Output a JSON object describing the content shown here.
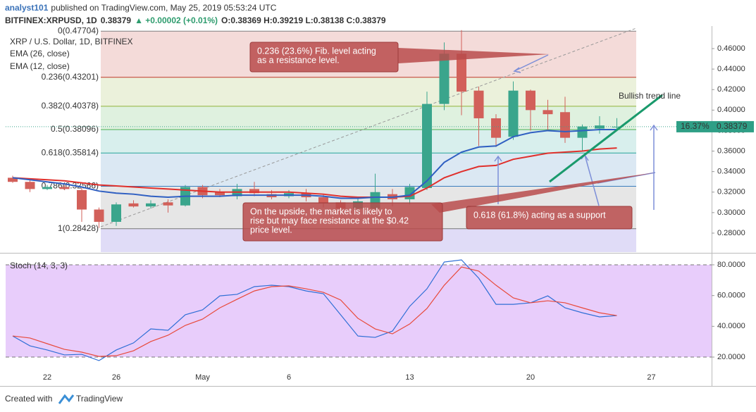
{
  "header": {
    "author": "analyst101",
    "published": "published on TradingView.com, May 25, 2019 05:53:24 UTC",
    "symbol": "BITFINEX:XRPUSD, 1D",
    "price": "0.38379",
    "change": "▲ +0.00002 (+0.01%)",
    "ohlc": "O:0.38369 H:0.39219 L:0.38138 C:0.38379"
  },
  "footer": {
    "created": "Created with",
    "brand": "TradingView"
  },
  "chart_data": [
    {
      "type": "candlestick",
      "title": "XRP / U.S. Dollar, 1D, BITFINEX",
      "categories": [
        null,
        null,
        "22",
        null,
        null,
        null,
        "26",
        null,
        null,
        null,
        null,
        "May",
        null,
        null,
        null,
        null,
        "6",
        null,
        null,
        null,
        null,
        null,
        null,
        "13",
        null,
        null,
        null,
        null,
        null,
        null,
        "20",
        null,
        null,
        null,
        null,
        null,
        null,
        "27"
      ],
      "open": [
        0.334,
        0.33,
        0.323,
        0.325,
        0.322,
        0.303,
        0.291,
        0.309,
        0.306,
        0.31,
        0.307,
        0.325,
        0.32,
        0.316,
        0.323,
        0.318,
        0.316,
        0.319,
        0.315,
        0.31,
        0.304,
        0.304,
        0.318,
        0.313,
        0.324,
        0.406,
        0.455,
        0.419,
        0.392,
        0.374,
        0.419,
        0.4,
        0.398,
        0.373,
        0.382,
        0.38369,
        null,
        null
      ],
      "high": [
        0.336,
        0.332,
        0.327,
        0.327,
        0.324,
        0.305,
        0.31,
        0.312,
        0.312,
        0.313,
        0.327,
        0.327,
        0.323,
        0.328,
        0.33,
        0.322,
        0.322,
        0.323,
        0.318,
        0.312,
        0.314,
        0.338,
        0.323,
        0.328,
        0.418,
        0.466,
        0.478,
        0.423,
        0.396,
        0.428,
        0.42,
        0.41,
        0.413,
        0.386,
        0.394,
        0.39219,
        null,
        null
      ],
      "low": [
        0.329,
        0.32,
        0.322,
        0.322,
        0.291,
        0.285,
        0.287,
        0.305,
        0.304,
        0.3,
        0.306,
        0.314,
        0.315,
        0.313,
        0.316,
        0.313,
        0.314,
        0.311,
        0.305,
        0.301,
        0.3,
        0.302,
        0.306,
        0.308,
        0.322,
        0.4,
        0.395,
        0.365,
        0.364,
        0.371,
        0.38,
        0.38,
        0.368,
        0.36,
        0.377,
        0.38138,
        null,
        null
      ],
      "close": [
        0.33,
        0.323,
        0.325,
        0.323,
        0.303,
        0.291,
        0.308,
        0.306,
        0.309,
        0.307,
        0.325,
        0.317,
        0.317,
        0.323,
        0.319,
        0.315,
        0.319,
        0.315,
        0.309,
        0.304,
        0.311,
        0.32,
        0.313,
        0.325,
        0.406,
        0.455,
        0.418,
        0.392,
        0.373,
        0.419,
        0.4,
        0.396,
        0.373,
        0.384,
        0.385,
        0.38379,
        null,
        null
      ],
      "up_color": "#3aa58c",
      "down_color": "#d2605a",
      "series": [
        {
          "name": "EMA (26, close)",
          "color": "#e0302c",
          "values": [
            0.334,
            0.333,
            0.332,
            0.331,
            0.329,
            0.327,
            0.326,
            0.325,
            0.324,
            0.323,
            0.322,
            0.321,
            0.32,
            0.32,
            0.32,
            0.32,
            0.32,
            0.319,
            0.318,
            0.316,
            0.315,
            0.315,
            0.315,
            0.316,
            0.324,
            0.334,
            0.34,
            0.345,
            0.346,
            0.352,
            0.355,
            0.358,
            0.359,
            0.36,
            0.362,
            0.363,
            null,
            null
          ]
        },
        {
          "name": "EMA (12, close)",
          "color": "#2f5fc2",
          "values": [
            0.334,
            0.332,
            0.33,
            0.328,
            0.325,
            0.321,
            0.319,
            0.318,
            0.316,
            0.315,
            0.316,
            0.316,
            0.316,
            0.317,
            0.317,
            0.317,
            0.317,
            0.317,
            0.316,
            0.314,
            0.314,
            0.315,
            0.315,
            0.317,
            0.331,
            0.349,
            0.359,
            0.364,
            0.365,
            0.374,
            0.378,
            0.38,
            0.379,
            0.38,
            0.381,
            0.381,
            null,
            null
          ]
        }
      ],
      "ylim": [
        0.26145,
        0.48198
      ],
      "yticks": [
        {
          "value": 0.28,
          "label": "0.28000"
        },
        {
          "value": 0.3,
          "label": "0.30000"
        },
        {
          "value": 0.32,
          "label": "0.32000"
        },
        {
          "value": 0.34,
          "label": "0.34000"
        },
        {
          "value": 0.36,
          "label": "0.36000"
        },
        {
          "value": 0.38,
          "label": "0.38000"
        },
        {
          "value": 0.4,
          "label": "0.40000"
        },
        {
          "value": 0.42,
          "label": "0.42000"
        },
        {
          "value": 0.44,
          "label": "0.44000"
        },
        {
          "value": 0.46,
          "label": "0.46000"
        }
      ],
      "fib_levels": [
        {
          "value": 0.47704,
          "label": "0(0.47704)",
          "color": "#808080"
        },
        {
          "value": 0.43201,
          "label": "0.236(0.43201)",
          "color": "#c0392b"
        },
        {
          "value": 0.40378,
          "label": "0.382(0.40378)",
          "color": "#8fb33a"
        },
        {
          "value": 0.38096,
          "label": "0.5(0.38096)",
          "color": "#4caf50"
        },
        {
          "value": 0.35814,
          "label": "0.618(0.35814)",
          "color": "#26a69a"
        },
        {
          "value": 0.32566,
          "label": "0.786(0.32566)",
          "color": "#3a7ebf"
        },
        {
          "value": 0.28428,
          "label": "1(0.28428)",
          "color": "#777777"
        }
      ],
      "last_price": 0.38379,
      "last_change": "16.37%",
      "annotations": [
        {
          "lines": [
            "0.236 (23.6%) Fib. level acting",
            "as a resistance level."
          ]
        },
        {
          "lines": [
            "On the upside, the market is likely to",
            "rise but may face resistance at the $0.42",
            "price level."
          ]
        },
        {
          "lines": [
            "0.618 (61.8%) acting as a support"
          ]
        }
      ],
      "trend_label": "Bullish trend line"
    },
    {
      "type": "line",
      "title": "Stoch (14, 3, 3)",
      "series": [
        {
          "color": "#2f6fd6",
          "values": [
            33.7,
            27.3,
            24.6,
            21.4,
            21.8,
            17.7,
            24.6,
            29.2,
            38.3,
            37.4,
            47.5,
            50.7,
            59.8,
            60.8,
            65.8,
            66.7,
            65.8,
            63,
            61.2,
            47.5,
            33.7,
            32.8,
            36.9,
            53,
            64.4,
            81.8,
            83.2,
            71.3,
            54.3,
            54.3,
            55.3,
            59.8,
            52,
            48.8,
            46.1,
            47,
            null,
            null
          ]
        },
        {
          "color": "#e84a3b",
          "values": [
            33.7,
            32.4,
            28.7,
            25,
            23.2,
            20.4,
            20.9,
            24.1,
            30.1,
            34.2,
            40.6,
            44.7,
            52,
            57.6,
            63,
            65.8,
            66.3,
            64.4,
            62.1,
            57.1,
            45.2,
            38.3,
            35.1,
            41.5,
            51.6,
            66.7,
            78.6,
            75.9,
            66.7,
            58.5,
            55.3,
            56.6,
            55.3,
            52,
            48.8,
            47,
            null,
            null
          ]
        }
      ],
      "ylim": [
        1.22,
        86.87
      ],
      "yticks": [
        {
          "value": 20,
          "label": "20.0000"
        },
        {
          "value": 40,
          "label": "40.0000"
        },
        {
          "value": 60,
          "label": "60.0000"
        },
        {
          "value": 80,
          "label": "80.0000"
        }
      ],
      "band": [
        20,
        80
      ],
      "band_color": "#e8cdfb"
    }
  ]
}
